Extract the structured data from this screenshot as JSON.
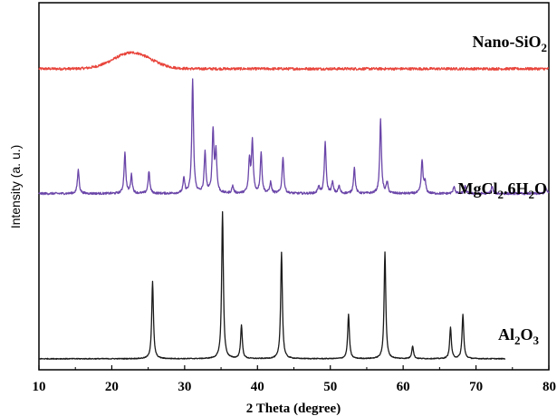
{
  "chart_data": {
    "type": "line",
    "title": "",
    "xlabel": "2 Theta (degree)",
    "ylabel": "Intensity (a. u.)",
    "xlim": [
      10,
      80
    ],
    "ylim": [
      0,
      100
    ],
    "xticks": [
      "10",
      "20",
      "30",
      "40",
      "50",
      "60",
      "70",
      "80"
    ],
    "grid": false,
    "legend": "labels placed at right end of each trace",
    "series": [
      {
        "name": "Nano-SiO2",
        "label_main": "Nano-SiO",
        "label_sub": "2",
        "label_tail": "",
        "color": "#e8453c",
        "xmax": 80,
        "baseline": 82.0,
        "noise": 0.35,
        "hump": {
          "center": 22.8,
          "width": 3.6,
          "height": 4.4
        },
        "peaks": []
      },
      {
        "name": "MgCl2.6H2O",
        "label_main": "MgCl",
        "label_sub": "2",
        "label_mid": ".6H",
        "label_sub2": "2",
        "label_tail": "O",
        "color": "#6a45a8",
        "xmax": 80,
        "baseline": 48.0,
        "noise": 0.3,
        "peaks": [
          {
            "x": 15.4,
            "h": 6.5
          },
          {
            "x": 21.8,
            "h": 11
          },
          {
            "x": 22.7,
            "h": 5
          },
          {
            "x": 25.1,
            "h": 6
          },
          {
            "x": 29.9,
            "h": 4
          },
          {
            "x": 31.1,
            "h": 31
          },
          {
            "x": 32.8,
            "h": 11
          },
          {
            "x": 33.9,
            "h": 17
          },
          {
            "x": 34.3,
            "h": 11
          },
          {
            "x": 36.6,
            "h": 2
          },
          {
            "x": 38.9,
            "h": 9
          },
          {
            "x": 39.3,
            "h": 14
          },
          {
            "x": 40.5,
            "h": 11
          },
          {
            "x": 41.8,
            "h": 3
          },
          {
            "x": 43.5,
            "h": 10
          },
          {
            "x": 48.4,
            "h": 2
          },
          {
            "x": 49.3,
            "h": 14
          },
          {
            "x": 50.3,
            "h": 3
          },
          {
            "x": 51.2,
            "h": 2
          },
          {
            "x": 53.3,
            "h": 7
          },
          {
            "x": 56.9,
            "h": 20
          },
          {
            "x": 57.8,
            "h": 3
          },
          {
            "x": 62.6,
            "h": 9
          },
          {
            "x": 63.0,
            "h": 3
          },
          {
            "x": 67.0,
            "h": 2
          },
          {
            "x": 68.5,
            "h": 2
          },
          {
            "x": 72.2,
            "h": 2
          },
          {
            "x": 79.6,
            "h": 1.5
          }
        ]
      },
      {
        "name": "Al2O3",
        "label_main": "Al",
        "label_sub": "2",
        "label_mid": "O",
        "label_sub2": "3",
        "label_tail": "",
        "color": "#1a1a1a",
        "xmax": 74,
        "baseline": 3.0,
        "noise": 0.12,
        "peaks": [
          {
            "x": 25.6,
            "h": 21
          },
          {
            "x": 35.2,
            "h": 40
          },
          {
            "x": 37.8,
            "h": 9
          },
          {
            "x": 43.3,
            "h": 29
          },
          {
            "x": 52.5,
            "h": 12
          },
          {
            "x": 57.5,
            "h": 29
          },
          {
            "x": 61.3,
            "h": 3.5
          },
          {
            "x": 66.5,
            "h": 8.5
          },
          {
            "x": 68.2,
            "h": 12
          }
        ]
      }
    ]
  }
}
